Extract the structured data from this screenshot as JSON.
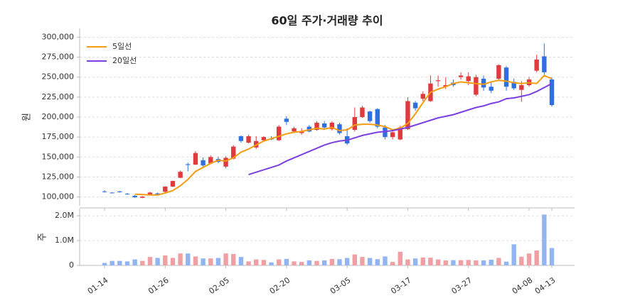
{
  "chart_data": {
    "type": "candlestick",
    "title": "60일 주가·거래량 추이",
    "categories": [
      "01-14",
      null,
      null,
      null,
      null,
      null,
      null,
      null,
      "01-26",
      null,
      null,
      null,
      null,
      null,
      null,
      null,
      "02-05",
      null,
      null,
      null,
      null,
      null,
      null,
      null,
      "02-20",
      null,
      null,
      null,
      null,
      null,
      null,
      null,
      "03-05",
      null,
      null,
      null,
      null,
      null,
      null,
      null,
      "03-17",
      null,
      null,
      null,
      null,
      null,
      null,
      null,
      "03-27",
      null,
      null,
      null,
      null,
      null,
      null,
      null,
      "04-08",
      null,
      null,
      "04-13"
    ],
    "open": [
      107000,
      105500,
      107000,
      104000,
      101500,
      99000,
      103000,
      104500,
      106500,
      113000,
      124000,
      141000,
      140500,
      146000,
      142000,
      147500,
      138000,
      148000,
      176000,
      168000,
      162000,
      171000,
      173000,
      171000,
      198000,
      182000,
      180000,
      188000,
      184000,
      192000,
      185000,
      191000,
      176000,
      184000,
      200000,
      207000,
      210000,
      187000,
      175000,
      172000,
      185000,
      218000,
      223000,
      220000,
      245000,
      238000,
      243000,
      250000,
      245000,
      228000,
      248000,
      238000,
      248000,
      262000,
      244000,
      234000,
      240000,
      258000,
      276000,
      247000
    ],
    "high": [
      108500,
      106000,
      107500,
      105000,
      102500,
      101000,
      106500,
      105500,
      113500,
      120500,
      133000,
      143000,
      157500,
      149500,
      152000,
      150500,
      151000,
      165000,
      177000,
      178000,
      176000,
      176000,
      176000,
      190000,
      201000,
      188000,
      186000,
      190000,
      195000,
      195000,
      195000,
      193000,
      186000,
      212000,
      214000,
      208000,
      211000,
      190000,
      182000,
      189000,
      225000,
      220000,
      232000,
      252000,
      252000,
      250000,
      247000,
      256000,
      256000,
      253000,
      252000,
      244000,
      266000,
      264000,
      248000,
      245000,
      250000,
      278000,
      292000,
      250000
    ],
    "low": [
      105500,
      104500,
      105500,
      103000,
      99000,
      98500,
      102500,
      102000,
      106000,
      112500,
      123500,
      132000,
      140000,
      137500,
      141500,
      142500,
      136000,
      147000,
      168000,
      167000,
      160000,
      170000,
      171000,
      170000,
      190000,
      180000,
      178000,
      181000,
      183000,
      184000,
      183000,
      178000,
      165000,
      182000,
      199000,
      193000,
      186000,
      172000,
      172000,
      171000,
      184000,
      208000,
      220000,
      219000,
      238000,
      235000,
      238000,
      247000,
      240000,
      226000,
      233000,
      230000,
      246000,
      233000,
      234000,
      219000,
      238000,
      256000,
      253000,
      213000
    ],
    "close": [
      106500,
      105000,
      106000,
      103500,
      99500,
      100500,
      105500,
      102500,
      113000,
      120000,
      131500,
      140000,
      155000,
      139500,
      150000,
      144000,
      149000,
      163000,
      170000,
      176000,
      170000,
      175000,
      172000,
      188000,
      194000,
      186000,
      182000,
      182000,
      193000,
      187000,
      193000,
      180000,
      167000,
      200000,
      212000,
      195000,
      188000,
      175000,
      181000,
      187000,
      220000,
      211000,
      229000,
      242000,
      246000,
      240000,
      240000,
      252000,
      251000,
      250000,
      237000,
      233000,
      265000,
      238000,
      236000,
      240000,
      247000,
      272000,
      256000,
      215000
    ],
    "volume": [
      100000,
      180000,
      180000,
      160000,
      240000,
      180000,
      340000,
      300000,
      400000,
      300000,
      480000,
      480000,
      360000,
      280000,
      280000,
      300000,
      480000,
      460000,
      340000,
      160000,
      240000,
      220000,
      120000,
      240000,
      260000,
      160000,
      140000,
      200000,
      180000,
      200000,
      260000,
      250000,
      300000,
      440000,
      340000,
      300000,
      250000,
      360000,
      140000,
      550000,
      240000,
      280000,
      320000,
      310000,
      240000,
      200000,
      210000,
      210000,
      220000,
      200000,
      200000,
      230000,
      300000,
      150000,
      850000,
      350000,
      480000,
      600000,
      2050000,
      700000
    ],
    "series": [
      {
        "name": "5일선",
        "color": "#f39c12",
        "values": [
          null,
          null,
          null,
          null,
          103500,
          103000,
          102500,
          102500,
          105000,
          108000,
          114000,
          122000,
          132000,
          137000,
          142000,
          146000,
          145000,
          149000,
          156000,
          160000,
          165000,
          170000,
          173000,
          176000,
          179000,
          181000,
          182000,
          184000,
          186000,
          185000,
          187000,
          183000,
          184000,
          190000,
          191000,
          191000,
          190000,
          188000,
          184000,
          186000,
          192000,
          204000,
          218000,
          231000,
          235000,
          238000,
          242000,
          244000,
          243000,
          242000,
          241000,
          244000,
          246000,
          245000,
          243000,
          242000,
          243000,
          242000,
          252000,
          248000
        ]
      },
      {
        "name": "20일선",
        "color": "#7b3fe4",
        "values": [
          null,
          null,
          null,
          null,
          null,
          null,
          null,
          null,
          null,
          null,
          null,
          null,
          null,
          null,
          null,
          null,
          null,
          null,
          null,
          128000,
          131000,
          134000,
          137000,
          140000,
          145000,
          149000,
          153000,
          157000,
          161000,
          165000,
          168000,
          170000,
          171000,
          174000,
          177000,
          179000,
          181000,
          182000,
          183000,
          185000,
          187000,
          190000,
          193000,
          196000,
          199000,
          201000,
          203000,
          206000,
          209000,
          212000,
          214000,
          217000,
          219000,
          223000,
          224000,
          226000,
          228000,
          232000,
          237000,
          242000
        ]
      }
    ],
    "up_color": "#e03a3e",
    "down_color": "#2f6fe0",
    "volume_up_color": "#f0a0a4",
    "volume_down_color": "#93b4f2",
    "ylabel": "원",
    "ylim": [
      89000,
      311000
    ],
    "yticks": [
      {
        "value": 100000,
        "label": "100,000"
      },
      {
        "value": 125000,
        "label": "125,000"
      },
      {
        "value": 150000,
        "label": "150,000"
      },
      {
        "value": 175000,
        "label": "175,000"
      },
      {
        "value": 200000,
        "label": "200,000"
      },
      {
        "value": 225000,
        "label": "225,000"
      },
      {
        "value": 250000,
        "label": "250,000"
      },
      {
        "value": 275000,
        "label": "275,000"
      },
      {
        "value": 300000,
        "label": "300,000"
      }
    ],
    "y2label": "주",
    "y2lim": [
      0,
      2290000
    ],
    "y2ticks": [
      0,
      {
        "value": 1000000,
        "label": "1.0M"
      },
      {
        "value": 2000000,
        "label": "2.0M"
      }
    ],
    "grid": true,
    "legend": "upper-left"
  }
}
